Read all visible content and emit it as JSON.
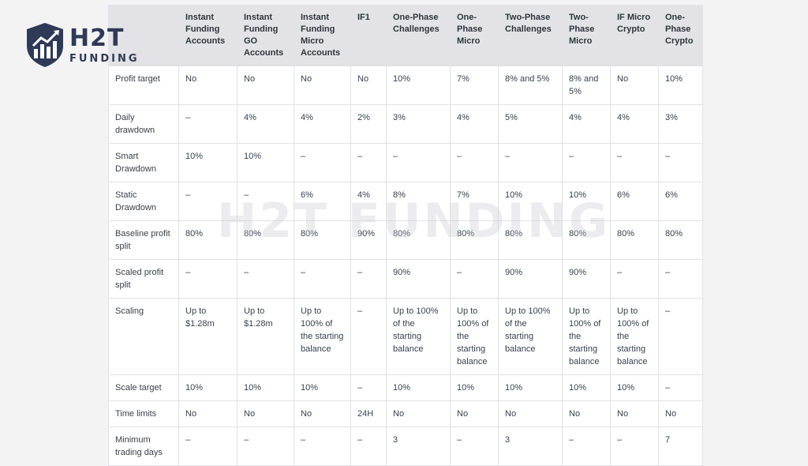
{
  "logo": {
    "main": "H2T",
    "sub": "FUNDING"
  },
  "watermark": "H2T FUNDING",
  "table": {
    "header": [
      "",
      "Instant Funding Accounts",
      "Instant Funding GO Accounts",
      "Instant Funding Micro Accounts",
      "IF1",
      "One-Phase Challenges",
      "One-Phase Micro",
      "Two-Phase Challenges",
      "Two-Phase Micro",
      "IF Micro Crypto",
      "One-Phase Crypto"
    ],
    "rows": [
      [
        "Profit target",
        "No",
        "No",
        "No",
        "No",
        "10%",
        "7%",
        "8% and 5%",
        "8% and 5%",
        "No",
        "10%"
      ],
      [
        "Daily drawdown",
        "–",
        "4%",
        "4%",
        "2%",
        "3%",
        "4%",
        "5%",
        "4%",
        "4%",
        "3%"
      ],
      [
        "Smart Drawdown",
        "10%",
        "10%",
        "–",
        "–",
        "–",
        "–",
        "–",
        "–",
        "–",
        "–"
      ],
      [
        "Static Drawdown",
        "–",
        "–",
        "6%",
        "4%",
        "8%",
        "7%",
        "10%",
        "10%",
        "6%",
        "6%"
      ],
      [
        "Baseline profit split",
        "80%",
        "80%",
        "80%",
        "90%",
        "80%",
        "80%",
        "80%",
        "80%",
        "80%",
        "80%"
      ],
      [
        "Scaled profit split",
        "–",
        "–",
        "–",
        "–",
        "90%",
        "–",
        "90%",
        "90%",
        "–",
        "–"
      ],
      [
        "Scaling",
        "Up to $1.28m",
        "Up to $1.28m",
        "Up to 100% of the starting balance",
        "–",
        "Up to 100% of the starting balance",
        "Up to 100% of the starting balance",
        "Up to 100% of the starting balance",
        "Up to 100% of the starting balance",
        "Up to 100% of the starting balance",
        "–"
      ],
      [
        "Scale target",
        "10%",
        "10%",
        "10%",
        "–",
        "10%",
        "10%",
        "10%",
        "10%",
        "10%",
        "–"
      ],
      [
        "Time limits",
        "No",
        "No",
        "No",
        "24H",
        "No",
        "No",
        "No",
        "No",
        "No",
        "No"
      ],
      [
        "Minimum trading days",
        "–",
        "–",
        "–",
        "–",
        "3",
        "–",
        "3",
        "–",
        "–",
        "7"
      ]
    ]
  }
}
